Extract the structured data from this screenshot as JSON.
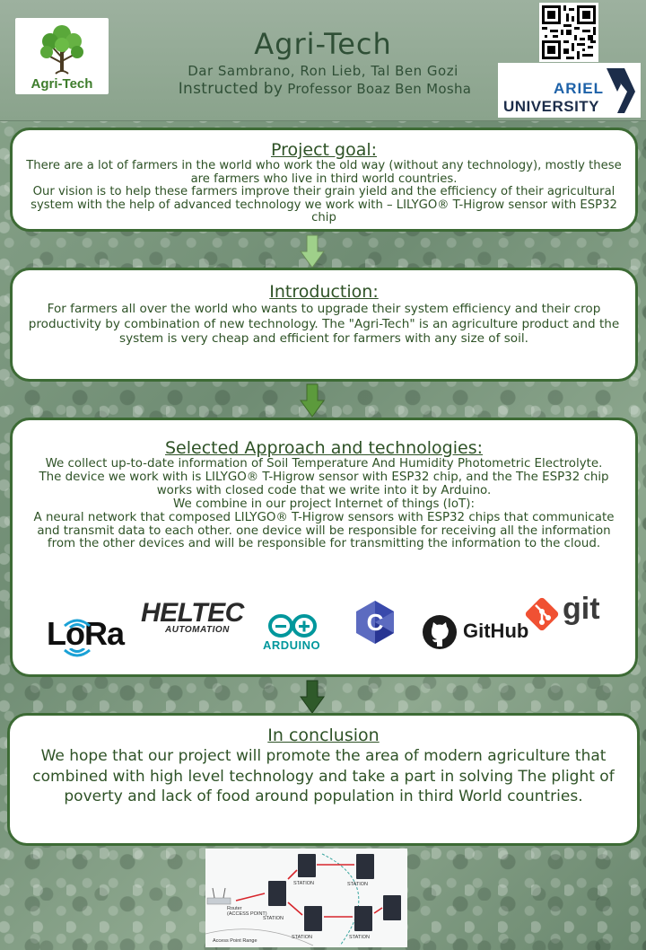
{
  "header": {
    "logo_text": "Agri-Tech",
    "title": "Agri-Tech",
    "authors": "Dar Sambrano, Ron Lieb, Tal Ben Gozi",
    "instructed_prefix": "Instructed by",
    "instructor": "Professor Boaz Ben Mosha",
    "university_line1": "ARIEL",
    "university_line2": "UNIVERSITY"
  },
  "goal": {
    "heading": "Project goal:",
    "body": "There are a lot of farmers in the world who work the old way (without any technology), mostly these are farmers who live in third world countries.\nOur vision is to help these farmers improve their grain yield and the efficiency of their agricultural system with the help of advanced technology we work with – LILYGO® T-Higrow sensor with ESP32 chip"
  },
  "introduction": {
    "heading": "Introduction:",
    "body": "For farmers all over the world who wants to upgrade their system efficiency and their crop productivity by combination of new technology. The \"Agri-Tech\" is an agriculture product and the system is very cheap and efficient for farmers with any size of soil."
  },
  "approach": {
    "heading": "Selected Approach and technologies:",
    "body": "We collect up-to-date information of Soil Temperature And Humidity Photometric Electrolyte.\nThe device we work with is LILYGO® T-Higrow sensor with ESP32 chip, and the The ESP32 chip works with closed code that we write into it by Arduino.\nWe combine in our project Internet of things (IoT):\nA neural network that composed LILYGO® T-Higrow sensors with ESP32 chips that communicate and transmit data to each other. one device will be responsible for receiving all the information from the other devices and will be responsible for transmitting the information to the cloud."
  },
  "technologies": {
    "lora": "LoRa",
    "heltec": "HELTEC",
    "heltec_sub": "AUTOMATION",
    "arduino": "ARDUINO",
    "c_lang": "C",
    "github": "GitHub",
    "git": "git"
  },
  "conclusion": {
    "heading": "In conclusion",
    "body": "We hope that our project will promote the area of modern agriculture that combined with high level technology and take a part in solving The plight of poverty and lack of food  around population in third World countries."
  },
  "diagram": {
    "router_label": "Router",
    "access_point_label": "(ACCESS POINT)",
    "station_label": "STATION",
    "range_label": "Access Point Range"
  },
  "colors": {
    "card_border": "#3d6b35",
    "text_green": "#2e5226",
    "arrow_light": "#9fd08a",
    "arrow_mid": "#5c9a3c",
    "arrow_dark": "#2f5a2a"
  }
}
